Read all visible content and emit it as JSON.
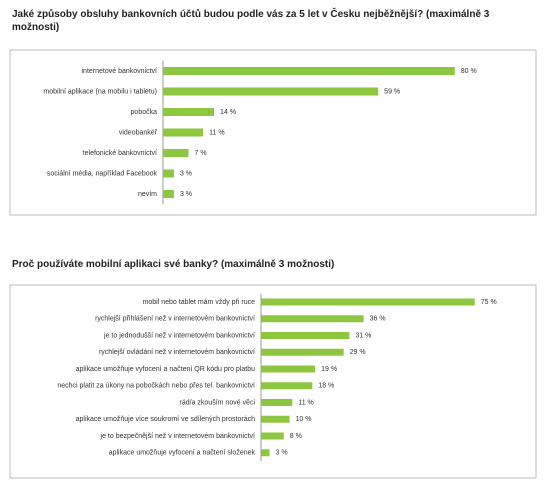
{
  "chart_data": [
    {
      "type": "bar",
      "orientation": "horizontal",
      "title": "Jaké způsoby obsluhy bankovních účtů budou podle vás za 5 let v Česku nejběžnější? (maximálně 3 možnosti)",
      "categories": [
        "internetové bankovnictví",
        "mobilní aplikace (na mobilu i tabletu)",
        "pobočka",
        "videobankéř",
        "telefonické bankovnictví",
        "sociální média, například Facebook",
        "nevím"
      ],
      "values": [
        80,
        59,
        14,
        11,
        7,
        3,
        3
      ],
      "value_labels": [
        "80 %",
        "59 %",
        "14 %",
        "11 %",
        "7 %",
        "3 %",
        "3 %"
      ],
      "color": "#8dc63f",
      "xlim": [
        0,
        85
      ]
    },
    {
      "type": "bar",
      "orientation": "horizontal",
      "title": "Proč používáte mobilní aplikaci své banky? (maximálně 3 možnosti)",
      "categories": [
        "mobil nebo tablet mám vždy při ruce",
        "rychlejší přihlášení než v internetovém bankovnictví",
        "je to jednodušší než v internetovém bankovnictví",
        "rychlejší ovládání než v internetovém bankovnictví",
        "aplikace umožňuje vyfocení a načtení QR kódu pro platbu",
        "nechci platit za  úkony na pobočkách nebo přes tel. bankovnictví",
        "rád/a zkouším nové věci",
        "aplikace umožňuje více soukromí ve sdílených prostorách",
        "je to bezpečnější než v internetovém bankovnictví",
        "aplikace umožňuje vyfocení a načtení složenek"
      ],
      "values": [
        75,
        36,
        31,
        29,
        19,
        18,
        11,
        10,
        8,
        3
      ],
      "value_labels": [
        "75 %",
        "36 %",
        "31 %",
        "29 %",
        "19 %",
        "18 %",
        "11 %",
        "10 %",
        "8 %",
        "3 %"
      ],
      "color": "#8dc63f",
      "xlim": [
        0,
        80
      ]
    }
  ]
}
